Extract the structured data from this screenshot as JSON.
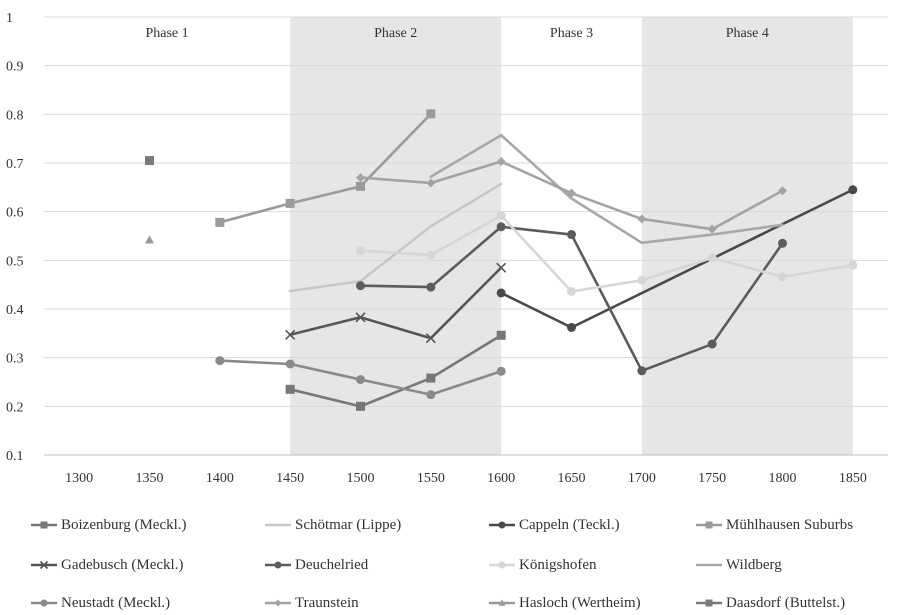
{
  "chart_data": {
    "type": "line",
    "title": "",
    "xlabel": "",
    "ylabel": "",
    "xlim": [
      1275,
      1875
    ],
    "ylim": [
      0.1,
      1
    ],
    "x_ticks": [
      1300,
      1350,
      1400,
      1450,
      1500,
      1550,
      1600,
      1650,
      1700,
      1750,
      1800,
      1850
    ],
    "y_ticks": [
      0.1,
      0.2,
      0.3,
      0.4,
      0.5,
      0.6,
      0.7,
      0.8,
      0.9,
      1
    ],
    "y_tick_labels": [
      "0.1",
      "0.2",
      "0.3",
      "0.4",
      "0.5",
      "0.6",
      "0.7",
      "0.8",
      "0.9",
      "1"
    ],
    "grid": "horizontal",
    "legend_position": "bottom",
    "phases": [
      {
        "label": "Phase 1",
        "from": 1275,
        "to": 1450,
        "shaded": false
      },
      {
        "label": "Phase 2",
        "from": 1450,
        "to": 1600,
        "shaded": true
      },
      {
        "label": "Phase 3",
        "from": 1600,
        "to": 1700,
        "shaded": false
      },
      {
        "label": "Phase 4",
        "from": 1700,
        "to": 1850,
        "shaded": true
      }
    ],
    "series": [
      {
        "name": "Boizenburg (Meckl.)",
        "color": "#777777",
        "marker": "square",
        "x": [
          1450,
          1500,
          1550,
          1600
        ],
        "y": [
          0.235,
          0.2,
          0.258,
          0.346
        ]
      },
      {
        "name": "Schötmar (Lippe)",
        "color": "#c7c7c7",
        "marker": "none",
        "x": [
          1450,
          1500,
          1550,
          1600
        ],
        "y": [
          0.437,
          0.457,
          0.57,
          0.657
        ]
      },
      {
        "name": "Cappeln (Teckl.)",
        "color": "#4a4a4a",
        "marker": "circle",
        "x": [
          1600,
          1650,
          1850
        ],
        "y": [
          0.433,
          0.362,
          0.645
        ]
      },
      {
        "name": "Mühlhausen Suburbs",
        "color": "#9a9a9a",
        "marker": "square",
        "x": [
          1400,
          1450,
          1500,
          1550
        ],
        "y": [
          0.578,
          0.617,
          0.652,
          0.801
        ]
      },
      {
        "name": "Gadebusch (Meckl.)",
        "color": "#555555",
        "marker": "x",
        "x": [
          1450,
          1500,
          1550,
          1600
        ],
        "y": [
          0.347,
          0.383,
          0.34,
          0.485
        ]
      },
      {
        "name": "Deuchelried",
        "color": "#5c5c5c",
        "marker": "circle",
        "x": [
          1500,
          1550,
          1600,
          1650,
          1700,
          1750,
          1800
        ],
        "y": [
          0.448,
          0.445,
          0.569,
          0.553,
          0.273,
          0.328,
          0.535
        ]
      },
      {
        "name": "Königshofen",
        "color": "#d6d6d6",
        "marker": "circle",
        "x": [
          1500,
          1550,
          1600,
          1650,
          1700,
          1750,
          1800,
          1850
        ],
        "y": [
          0.52,
          0.511,
          0.592,
          0.436,
          0.459,
          0.505,
          0.466,
          0.49
        ]
      },
      {
        "name": "Wildberg",
        "color": "#a8a8a8",
        "marker": "none",
        "x": [
          1550,
          1600,
          1650,
          1700,
          1750,
          1800
        ],
        "y": [
          0.672,
          0.757,
          0.627,
          0.536,
          0.553,
          0.573
        ]
      },
      {
        "name": "Neustadt (Meckl.)",
        "color": "#8a8a8a",
        "marker": "circle",
        "x": [
          1400,
          1450,
          1500,
          1550,
          1600
        ],
        "y": [
          0.294,
          0.287,
          0.255,
          0.224,
          0.272
        ]
      },
      {
        "name": "Traunstein",
        "color": "#a3a3a3",
        "marker": "diamond",
        "x": [
          1500,
          1550,
          1600,
          1650,
          1700,
          1750,
          1800
        ],
        "y": [
          0.67,
          0.659,
          0.703,
          0.638,
          0.585,
          0.564,
          0.643
        ]
      },
      {
        "name": "Hasloch (Wertheim)",
        "color": "#9a9a9a",
        "marker": "triangle",
        "x": [
          1350
        ],
        "y": [
          0.542
        ]
      },
      {
        "name": "Daasdorf (Buttelst.)",
        "color": "#7a7a7a",
        "marker": "square",
        "x": [
          1350
        ],
        "y": [
          0.705
        ]
      }
    ]
  }
}
